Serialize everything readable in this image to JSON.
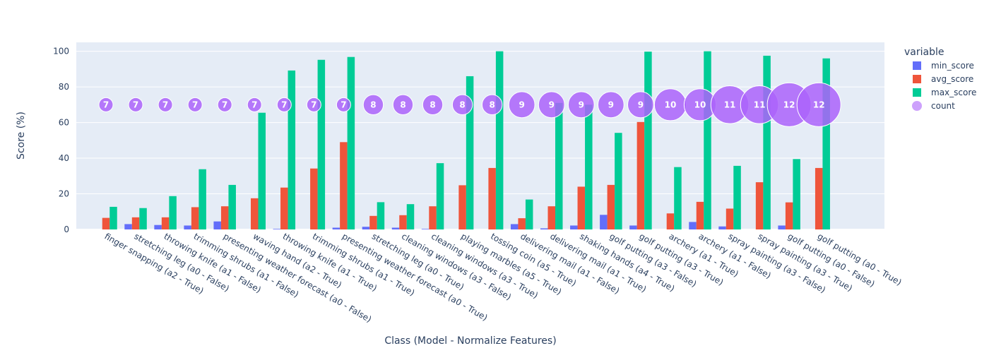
{
  "chart_data": {
    "type": "bar",
    "xlabel": "Class (Model - Normalize Features)",
    "ylabel": "Score (%)",
    "ylim": [
      0,
      105
    ],
    "yticks": [
      0,
      20,
      40,
      60,
      80,
      100
    ],
    "grid": true,
    "legend": {
      "title": "variable",
      "placement": "top-right"
    },
    "categories": [
      "finger snapping (a2 - True)",
      "stretching leg (a0 - False)",
      "throwing knife (a1 - False)",
      "trimming shrubs (a1 - False)",
      "presenting weather forecast (a0 - False)",
      "waving hand (a2 - True)",
      "throwing knife (a1 - True)",
      "trimming shrubs (a1 - True)",
      "presenting weather forecast (a0 - True)",
      "stretching leg (a0 - True)",
      "cleaning windows (a3 - False)",
      "cleaning windows (a3 - True)",
      "playing marbles (a5 - True)",
      "tossing coin (a5 - True)",
      "delivering mail (a1 - False)",
      "delivering mail (a1 - True)",
      "shaking hands (a4 - True)",
      "golf putting (a3 - False)",
      "golf putting (a3 - True)",
      "archery (a1 - True)",
      "archery (a1 - False)",
      "spray painting (a3 - False)",
      "spray painting (a3 - True)",
      "golf putting (a0 - False)",
      "golf putting (a0 - True)"
    ],
    "series": [
      {
        "name": "min_score",
        "color": "#636efa",
        "values": [
          0,
          3,
          2.5,
          2.2,
          4.5,
          0,
          0.3,
          0,
          1,
          1.5,
          1,
          0.3,
          0,
          0,
          3,
          0.6,
          2.2,
          8.2,
          2.2,
          0,
          4.2,
          1.7,
          0,
          2.2,
          0
        ]
      },
      {
        "name": "avg_score",
        "color": "#ef553b",
        "values": [
          6.5,
          6.8,
          6.8,
          12.5,
          13,
          17.5,
          23.5,
          34.2,
          49,
          7.6,
          8,
          13,
          24.8,
          34.5,
          6.3,
          13,
          24,
          25,
          60.3,
          9,
          15.5,
          11.7,
          26.5,
          15.2,
          34.5
        ]
      },
      {
        "name": "max_score",
        "color": "#00cc96",
        "values": [
          12.7,
          12,
          18.7,
          33.8,
          25,
          65.5,
          89.2,
          95.2,
          96.8,
          15.3,
          14.2,
          37.2,
          86,
          100,
          16.8,
          71,
          70,
          54.2,
          99.8,
          35,
          100,
          35.7,
          97.5,
          39.5,
          96
        ]
      }
    ],
    "count_series": {
      "name": "count",
      "color": "#ab63fa",
      "y": 70,
      "values": [
        7,
        7,
        7,
        7,
        7,
        7,
        7,
        7,
        7,
        8,
        8,
        8,
        8,
        8,
        9,
        9,
        9,
        9,
        9,
        10,
        10,
        11,
        11,
        12,
        12
      ]
    }
  }
}
